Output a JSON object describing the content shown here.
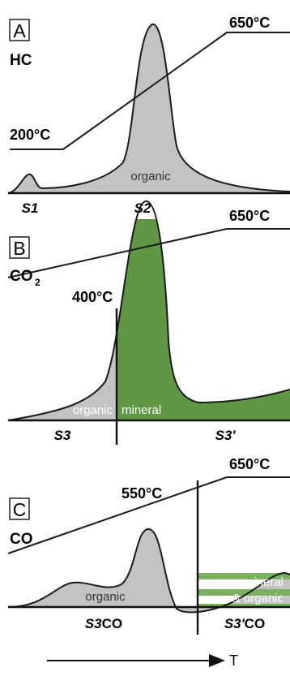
{
  "colors": {
    "organic_fill": "#c3c3c3",
    "mineral_fill": "#5f9745",
    "stripe_fill": "#7ab05e",
    "line": "#1a1a1a"
  },
  "panelA": {
    "letter": "A",
    "gas": "HC",
    "temp_start": "200°C",
    "temp_end": "650°C",
    "region_label": "organic",
    "peak1": "S1",
    "peak2": "S2"
  },
  "panelB": {
    "letter": "B",
    "gas_main": "CO",
    "gas_sub": "2",
    "temp_end": "650°C",
    "temp_split": "400°C",
    "region_left": "organic",
    "region_right": "mineral",
    "peak_left": "S3",
    "peak_right": "S3'"
  },
  "panelC": {
    "letter": "C",
    "gas": "CO",
    "temp_end": "650°C",
    "temp_split": "550°C",
    "region_left": "organic",
    "region_right_1": "mineral",
    "region_right_2": "& organic",
    "peak_left_main": "S3",
    "peak_left_suffix": "CO",
    "peak_right_main": "S3'",
    "peak_right_suffix": "CO"
  },
  "arrow": {
    "label": "T"
  }
}
